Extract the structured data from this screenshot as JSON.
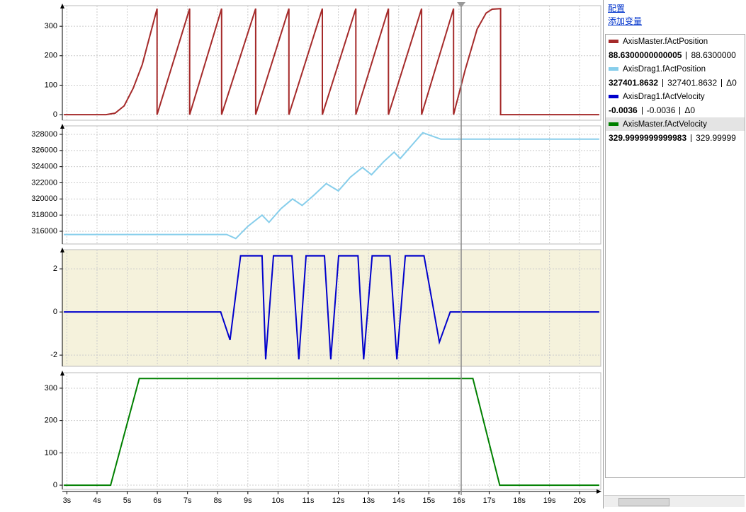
{
  "time_axis": {
    "xlim": [
      2.85,
      20.7
    ],
    "xticks": [
      {
        "value": 3,
        "label": "3s"
      },
      {
        "value": 4,
        "label": "4s"
      },
      {
        "value": 5,
        "label": "5s"
      },
      {
        "value": 6,
        "label": "6s"
      },
      {
        "value": 7,
        "label": "7s"
      },
      {
        "value": 8,
        "label": "8s"
      },
      {
        "value": 9,
        "label": "9s"
      },
      {
        "value": 10,
        "label": "10s"
      },
      {
        "value": 11,
        "label": "11s"
      },
      {
        "value": 12,
        "label": "12s"
      },
      {
        "value": 13,
        "label": "13s"
      },
      {
        "value": 14,
        "label": "14s"
      },
      {
        "value": 15,
        "label": "15s"
      },
      {
        "value": 16,
        "label": "16s"
      },
      {
        "value": 17,
        "label": "17s"
      },
      {
        "value": 18,
        "label": "18s"
      },
      {
        "value": 19,
        "label": "19s"
      },
      {
        "value": 20,
        "label": "20s"
      }
    ]
  },
  "chart_data": [
    {
      "type": "line",
      "ylim": [
        -19,
        370
      ],
      "yticks": [
        0,
        100,
        200,
        300
      ],
      "grid": true,
      "background": "#ffffff",
      "series": [
        {
          "color": "#a52a2a",
          "x": [
            2.9,
            4.3,
            4.6,
            4.9,
            5.2,
            5.5,
            5.99,
            5.99,
            7.07,
            7.07,
            8.13,
            8.13,
            9.26,
            9.26,
            10.36,
            10.36,
            11.47,
            11.47,
            12.58,
            12.58,
            13.66,
            13.66,
            14.76,
            14.76,
            15.82,
            15.82,
            16.2,
            16.6,
            16.9,
            17.1,
            17.38,
            17.38,
            20.65
          ],
          "values": [
            0,
            0,
            5,
            30,
            90,
            170,
            360,
            0,
            360,
            0,
            360,
            0,
            360,
            0,
            360,
            0,
            360,
            0,
            360,
            0,
            360,
            0,
            360,
            0,
            360,
            0,
            150,
            290,
            345,
            358,
            360,
            0,
            0
          ]
        }
      ]
    },
    {
      "type": "line",
      "ylim": [
        314423,
        329051
      ],
      "yticks": [
        316000,
        318000,
        320000,
        322000,
        324000,
        326000,
        328000
      ],
      "grid": true,
      "background": "#ffffff",
      "series": [
        {
          "color": "#87ceeb",
          "x": [
            2.9,
            8.3,
            8.6,
            9.0,
            9.47,
            9.7,
            10.1,
            10.48,
            10.8,
            11.2,
            11.6,
            12.0,
            12.4,
            12.8,
            13.1,
            13.5,
            13.85,
            14.05,
            14.4,
            14.8,
            15.4,
            20.65
          ],
          "values": [
            315600,
            315600,
            315100,
            316600,
            318000,
            317100,
            318800,
            320000,
            319200,
            320500,
            321900,
            321000,
            322700,
            323900,
            323000,
            324600,
            325800,
            325000,
            326500,
            328200,
            327401.8632,
            327401.8632
          ]
        }
      ]
    },
    {
      "type": "line",
      "ylim": [
        -2.52,
        2.89
      ],
      "yticks": [
        -2,
        0,
        2
      ],
      "grid": true,
      "background": "#f5f2dc",
      "series": [
        {
          "color": "#0000cc",
          "x": [
            2.9,
            8.1,
            8.41,
            8.76,
            9.47,
            9.59,
            9.85,
            10.46,
            10.69,
            10.93,
            11.54,
            11.75,
            12.01,
            12.65,
            12.84,
            13.12,
            13.71,
            13.94,
            14.22,
            14.84,
            15.35,
            15.71,
            20.65
          ],
          "values": [
            0,
            0,
            -1.3,
            2.6,
            2.6,
            -2.2,
            2.6,
            2.6,
            -2.2,
            2.6,
            2.6,
            -2.2,
            2.6,
            2.6,
            -2.2,
            2.6,
            2.6,
            -2.2,
            2.6,
            2.6,
            -1.4,
            0,
            0
          ]
        }
      ]
    },
    {
      "type": "line",
      "ylim": [
        -13,
        348
      ],
      "yticks": [
        0,
        100,
        200,
        300
      ],
      "grid": true,
      "background": "#ffffff",
      "series": [
        {
          "color": "#008000",
          "x": [
            2.9,
            4.45,
            5.4,
            16.46,
            17.35,
            20.65
          ],
          "values": [
            0,
            0,
            330,
            330,
            0,
            0
          ]
        }
      ]
    }
  ],
  "panel": {
    "links": [
      "配置",
      "添加变量"
    ],
    "variables": [
      {
        "name": "AxisMaster.fActPosition",
        "color": "#a52a2a",
        "current": "88.6300000000005",
        "compare": "88.6300000"
      },
      {
        "name": "AxisDrag1.fActPosition",
        "color": "#87ceeb",
        "current": "327401.8632",
        "compare": "327401.8632",
        "delta": "Δ0"
      },
      {
        "name": "AxisDrag1.fActVelocity",
        "color": "#0000cc",
        "current": "-0.0036",
        "compare": "-0.0036",
        "delta": "Δ0"
      },
      {
        "name": "AxisMaster.fActVelocity",
        "color": "#008000",
        "current": "329.9999999999983",
        "compare": "329.99999"
      }
    ]
  }
}
